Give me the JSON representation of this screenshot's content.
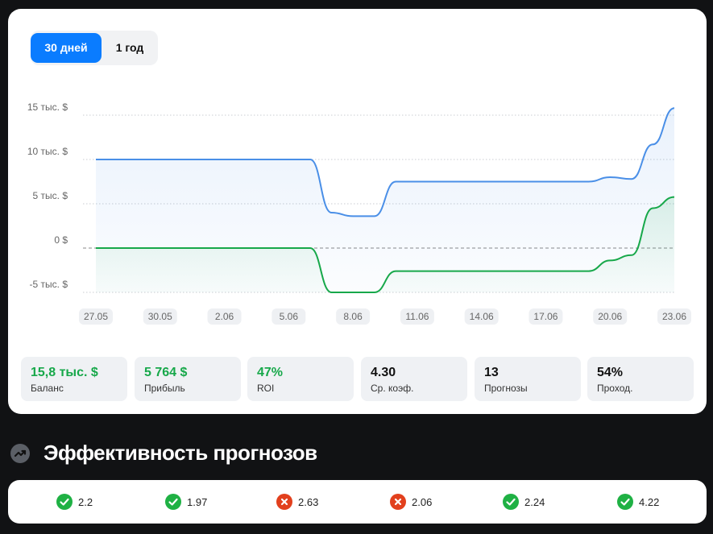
{
  "tabs": [
    {
      "label": "30 дней",
      "active": true
    },
    {
      "label": "1 год",
      "active": false
    }
  ],
  "chart_data": {
    "type": "line",
    "categories": [
      "27.05",
      null,
      null,
      "30.05",
      null,
      null,
      "2.06",
      null,
      null,
      "5.06",
      null,
      null,
      "8.06",
      null,
      null,
      "11.06",
      null,
      null,
      "14.06",
      null,
      null,
      "17.06",
      null,
      null,
      "20.06",
      null,
      null,
      "23.06"
    ],
    "series": [
      {
        "color": "#4a8fe7",
        "values": [
          10000,
          10000,
          10000,
          10000,
          10000,
          10000,
          10000,
          10000,
          10000,
          10000,
          10000,
          4000,
          3600,
          3600,
          7500,
          7500,
          7500,
          7500,
          7500,
          7500,
          7500,
          7500,
          7500,
          7500,
          8000,
          7800,
          11700,
          15800
        ]
      },
      {
        "color": "#17a84a",
        "values": [
          0,
          0,
          0,
          0,
          0,
          0,
          0,
          0,
          0,
          0,
          0,
          -5000,
          -5000,
          -5000,
          -2600,
          -2600,
          -2600,
          -2600,
          -2600,
          -2600,
          -2600,
          -2600,
          -2600,
          -2600,
          -1400,
          -800,
          4500,
          5764
        ]
      }
    ],
    "ylim": [
      -5000,
      16000
    ],
    "yticks": [
      {
        "value": 15000,
        "label": "15 тыс. $"
      },
      {
        "value": 10000,
        "label": "10 тыс. $"
      },
      {
        "value": 5000,
        "label": "5 тыс. $"
      },
      {
        "value": 0,
        "label": "0 $"
      },
      {
        "value": -5000,
        "label": "-5 тыс. $"
      }
    ],
    "grid": true
  },
  "stats": [
    {
      "value": "15,8 тыс. $",
      "label": "Баланс",
      "color": "#17a84a"
    },
    {
      "value": "5 764 $",
      "label": "Прибыль",
      "color": "#17a84a"
    },
    {
      "value": "47%",
      "label": "ROI",
      "color": "#17a84a"
    },
    {
      "value": "4.30",
      "label": "Ср. коэф.",
      "color": "#111111"
    },
    {
      "value": "13",
      "label": "Прогнозы",
      "color": "#111111"
    },
    {
      "value": "54%",
      "label": "Проход.",
      "color": "#111111"
    }
  ],
  "section_title": "Эффективность прогнозов",
  "predictions": [
    {
      "won": true,
      "odds": 2.2
    },
    {
      "won": true,
      "odds": 1.97
    },
    {
      "won": false,
      "odds": 2.63
    },
    {
      "won": false,
      "odds": 2.06
    },
    {
      "won": true,
      "odds": 2.24
    },
    {
      "won": true,
      "odds": 4.22
    }
  ]
}
